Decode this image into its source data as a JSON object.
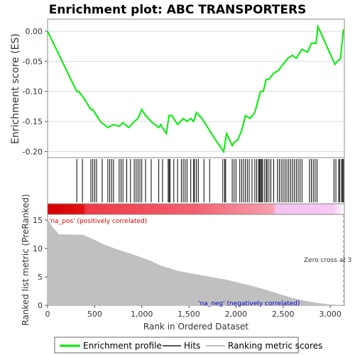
{
  "chart_data": [
    {
      "type": "line",
      "title": "Enrichment plot: ABC TRANSPORTERS",
      "ylabel": "Enrichment score (ES)",
      "xlim": [
        0,
        3150
      ],
      "ylim": [
        -0.21,
        0.02
      ],
      "yticks": [
        0.0,
        -0.05,
        -0.1,
        -0.15,
        -0.2
      ],
      "ytick_labels": [
        "0.00",
        "-0.05",
        "-0.10",
        "-0.15",
        "-0.20"
      ],
      "series": [
        {
          "name": "Enrichment profile",
          "color": "#00ee00",
          "x": [
            0,
            310,
            330,
            380,
            460,
            480,
            520,
            560,
            640,
            700,
            760,
            800,
            860,
            920,
            960,
            1000,
            1040,
            1100,
            1180,
            1200,
            1260,
            1290,
            1320,
            1380,
            1440,
            1480,
            1520,
            1550,
            1580,
            1640,
            1700,
            1780,
            1870,
            1900,
            1960,
            1980,
            2020,
            2060,
            2100,
            2150,
            2200,
            2260,
            2290,
            2320,
            2350,
            2400,
            2450,
            2500,
            2550,
            2600,
            2640,
            2700,
            2760,
            2800,
            2850,
            2870,
            3050,
            3080,
            3110,
            3140
          ],
          "y": [
            0.0,
            -0.1,
            -0.1,
            -0.11,
            -0.13,
            -0.13,
            -0.14,
            -0.15,
            -0.16,
            -0.155,
            -0.158,
            -0.152,
            -0.16,
            -0.15,
            -0.145,
            -0.13,
            -0.14,
            -0.15,
            -0.16,
            -0.155,
            -0.17,
            -0.14,
            -0.14,
            -0.155,
            -0.145,
            -0.15,
            -0.145,
            -0.15,
            -0.135,
            -0.145,
            -0.16,
            -0.18,
            -0.2,
            -0.17,
            -0.19,
            -0.185,
            -0.18,
            -0.165,
            -0.14,
            -0.145,
            -0.135,
            -0.1,
            -0.1,
            -0.08,
            -0.08,
            -0.07,
            -0.065,
            -0.055,
            -0.045,
            -0.04,
            -0.045,
            -0.03,
            -0.035,
            -0.02,
            -0.02,
            0.008,
            -0.055,
            -0.05,
            -0.045,
            0.003
          ]
        }
      ]
    },
    {
      "type": "barcode",
      "series": [
        {
          "name": "Hits",
          "color": "#000000",
          "x": [
            310,
            370,
            460,
            480,
            500,
            520,
            580,
            640,
            660,
            680,
            700,
            760,
            780,
            800,
            840,
            880,
            920,
            940,
            960,
            980,
            1000,
            1040,
            1100,
            1180,
            1220,
            1280,
            1290,
            1300,
            1340,
            1380,
            1420,
            1440,
            1460,
            1480,
            1520,
            1550,
            1560,
            1580,
            1600,
            1660,
            1720,
            1860,
            1880,
            1890,
            1960,
            1980,
            2000,
            2040,
            2060,
            2080,
            2100,
            2120,
            2140,
            2170,
            2200,
            2220,
            2240,
            2250,
            2260,
            2270,
            2280,
            2300,
            2320,
            2330,
            2350,
            2370,
            2400,
            2440,
            2460,
            2480,
            2500,
            2520,
            2540,
            2560,
            2580,
            2600,
            2620,
            2640,
            2660,
            2680,
            2700,
            2780,
            2800,
            2820,
            2840,
            2860,
            3040,
            3060,
            3090,
            3100,
            3120,
            3130,
            3140
          ]
        }
      ]
    },
    {
      "type": "area",
      "ylabel": "Ranked list metric (PreRanked)",
      "xlabel": "Rank in Ordered Dataset",
      "xlim": [
        0,
        3150
      ],
      "ylim": [
        0,
        16
      ],
      "xticks": [
        0,
        500,
        1000,
        1500,
        2000,
        2500,
        3000
      ],
      "xtick_labels": [
        "0",
        "500",
        "1,000",
        "1,500",
        "2,000",
        "2,500",
        "3,000"
      ],
      "yticks": [
        0,
        5,
        10,
        15
      ],
      "ytick_labels": [
        "0",
        "5",
        "10",
        "15"
      ],
      "series": [
        {
          "name": "Ranking metric scores",
          "color": "#c0c0c0",
          "x": [
            0,
            50,
            100,
            120,
            380,
            420,
            500,
            600,
            700,
            800,
            900,
            1000,
            1100,
            1200,
            1300,
            1400,
            1500,
            1600,
            1700,
            1800,
            1900,
            2000,
            2100,
            2200,
            2300,
            2400,
            2500,
            2600,
            2700,
            2800,
            2900,
            3000,
            3100,
            3150
          ],
          "y": [
            15.3,
            13.8,
            12.9,
            12.5,
            12.4,
            12.1,
            11.5,
            10.7,
            10.1,
            9.5,
            9.0,
            8.4,
            7.8,
            7.0,
            6.5,
            6.0,
            5.7,
            5.4,
            5.1,
            4.8,
            4.5,
            4.1,
            3.7,
            3.3,
            2.8,
            2.3,
            1.8,
            1.3,
            0.9,
            0.6,
            0.35,
            0.15,
            0.05,
            0.0
          ]
        }
      ],
      "annotations": {
        "pos_label": "'na_pos' (positively correlated)",
        "neg_label": "'na_neg' (negatively correlated)",
        "zero_cross": "Zero cross at 3"
      },
      "pos_color": "#d40000",
      "neg_color": "#0000cc"
    }
  ],
  "legend": {
    "items": [
      {
        "label": "Enrichment profile",
        "color": "#00ee00"
      },
      {
        "label": "Hits",
        "color": "#555555"
      },
      {
        "label": "Ranking metric scores",
        "color": "#c0c0c0"
      }
    ]
  }
}
